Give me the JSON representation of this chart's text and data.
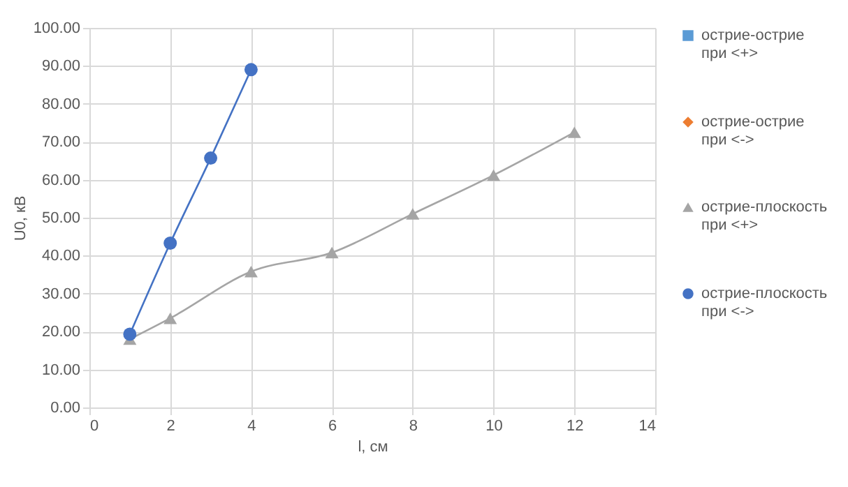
{
  "chart_data": {
    "type": "line",
    "xlabel": "l, см",
    "ylabel": "U0, кВ",
    "xlim": [
      0,
      14
    ],
    "xticks": [
      0,
      2,
      4,
      6,
      8,
      10,
      12,
      14
    ],
    "ylim": [
      0,
      100
    ],
    "yticks": [
      {
        "value": 0,
        "label": "0.00"
      },
      {
        "value": 10,
        "label": "10.00"
      },
      {
        "value": 20,
        "label": "20.00"
      },
      {
        "value": 30,
        "label": "30.00"
      },
      {
        "value": 40,
        "label": "40.00"
      },
      {
        "value": 50,
        "label": "50.00"
      },
      {
        "value": 60,
        "label": "60.00"
      },
      {
        "value": 70,
        "label": "70.00"
      },
      {
        "value": 80,
        "label": "80.00"
      },
      {
        "value": 90,
        "label": "90.00"
      },
      {
        "value": 100,
        "label": "100.00"
      }
    ],
    "grid": true,
    "legend": "right",
    "line_style": "solid",
    "series": [
      {
        "name": "острие-острие при <+>",
        "color": "#5b9bd5",
        "marker": "square",
        "values": [
          null,
          null,
          null,
          null
        ]
      },
      {
        "name": "острие-острие при <->",
        "color": "#ed7d31",
        "marker": "diamond",
        "values": [
          null,
          null,
          null,
          null
        ]
      },
      {
        "name": "острие-плоскость при <+>",
        "color": "#a5a5a5",
        "marker": "triangle",
        "x": [
          1,
          2,
          4,
          6,
          8,
          10,
          12
        ],
        "values": [
          18.0,
          23.5,
          35.8,
          40.8,
          51.0,
          61.2,
          72.5
        ]
      },
      {
        "name": "острие-плоскость при <->",
        "color": "#4472c4",
        "marker": "circle",
        "x": [
          1,
          2,
          3,
          4
        ],
        "values": [
          19.3,
          43.3,
          65.7,
          89.0
        ]
      }
    ]
  }
}
